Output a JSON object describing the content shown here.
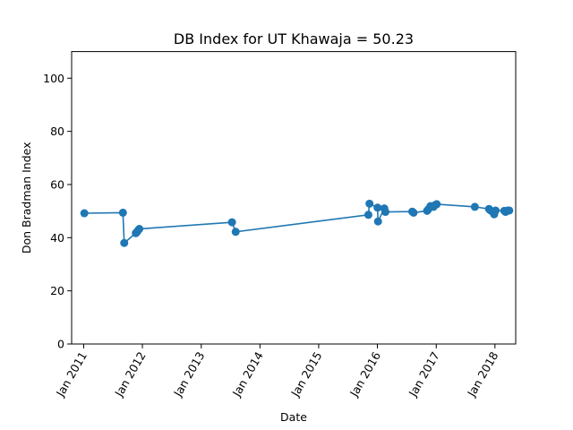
{
  "chart_data": {
    "type": "line",
    "title": "DB Index for UT Khawaja = 50.23",
    "xlabel": "Date",
    "ylabel": "Don Bradman Index",
    "ylim": [
      0,
      110
    ],
    "xlim": [
      "2010-10-18",
      "2018-05-10"
    ],
    "x_ticks": [
      "2011-01-01",
      "2012-01-01",
      "2013-01-01",
      "2014-01-01",
      "2015-01-01",
      "2016-01-01",
      "2017-01-01",
      "2018-01-01"
    ],
    "x_tick_labels": [
      "Jan 2011",
      "Jan 2012",
      "Jan 2013",
      "Jan 2014",
      "Jan 2015",
      "Jan 2016",
      "Jan 2017",
      "Jan 2018"
    ],
    "y_ticks": [
      0,
      20,
      40,
      60,
      80,
      100
    ],
    "y_tick_labels": [
      "0",
      "20",
      "40",
      "60",
      "80",
      "100"
    ],
    "grid": false,
    "color": "#1f77b4",
    "series": [
      {
        "x": [
          "2011-01-05",
          "2011-09-02",
          "2011-09-10",
          "2011-11-21",
          "2011-11-28",
          "2011-12-06",
          "2011-12-13",
          "2013-07-11",
          "2013-08-03",
          "2015-11-06",
          "2015-11-13",
          "2016-01-02",
          "2016-01-05",
          "2016-02-13",
          "2016-02-20",
          "2016-08-05",
          "2016-08-13",
          "2016-11-05",
          "2016-11-12",
          "2016-11-26",
          "2016-12-15",
          "2016-12-26",
          "2017-01-04",
          "2017-08-29",
          "2017-11-25",
          "2017-12-03",
          "2017-12-16",
          "2017-12-27",
          "2018-01-05",
          "2018-02-28",
          "2018-03-08",
          "2018-03-22",
          "2018-03-31"
        ],
        "y": [
          49.2,
          49.4,
          38.0,
          41.7,
          42.1,
          42.8,
          43.3,
          45.8,
          42.2,
          48.6,
          52.8,
          51.3,
          46.1,
          51.0,
          49.7,
          49.8,
          49.4,
          50.1,
          50.6,
          51.9,
          51.6,
          52.3,
          52.6,
          51.6,
          50.8,
          50.3,
          49.8,
          48.8,
          50.2,
          50.1,
          49.7,
          50.2,
          50.23
        ]
      }
    ]
  }
}
